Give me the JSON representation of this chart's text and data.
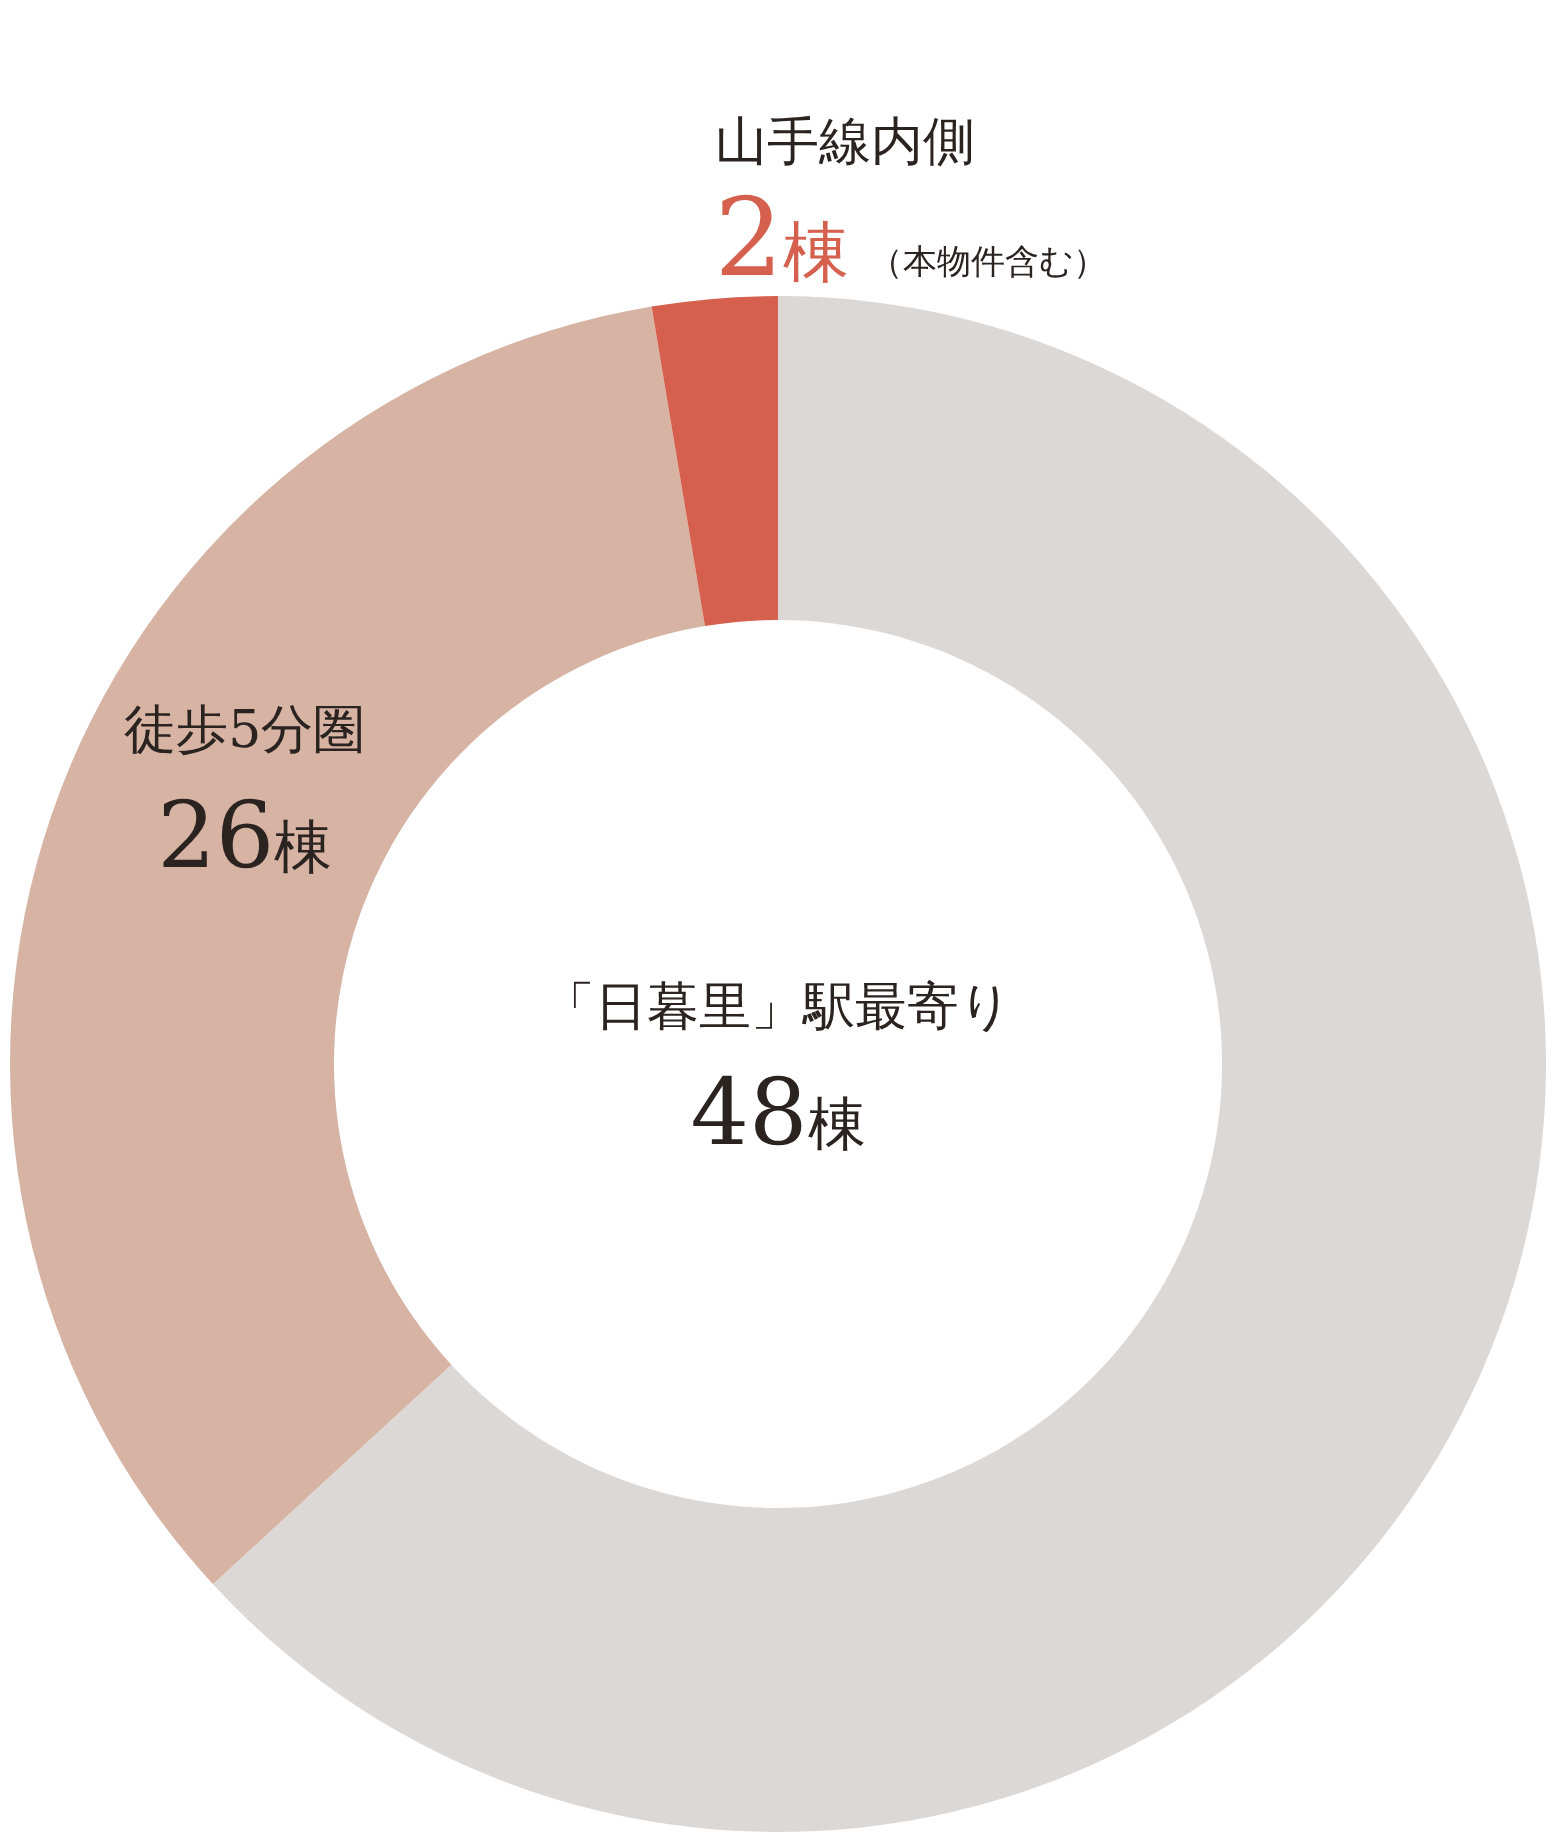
{
  "chart_data": {
    "type": "donut",
    "categories": [
      "「日暮里」駅最寄り",
      "徒歩5分圏",
      "山手線内側"
    ],
    "values": [
      48,
      26,
      2
    ],
    "colors": [
      "#dcd8d6",
      "#d6b3a3",
      "#d5604d"
    ],
    "value_labels": [
      "48棟",
      "26棟",
      "2棟"
    ],
    "annotations": [
      "（本物件含む）"
    ]
  }
}
